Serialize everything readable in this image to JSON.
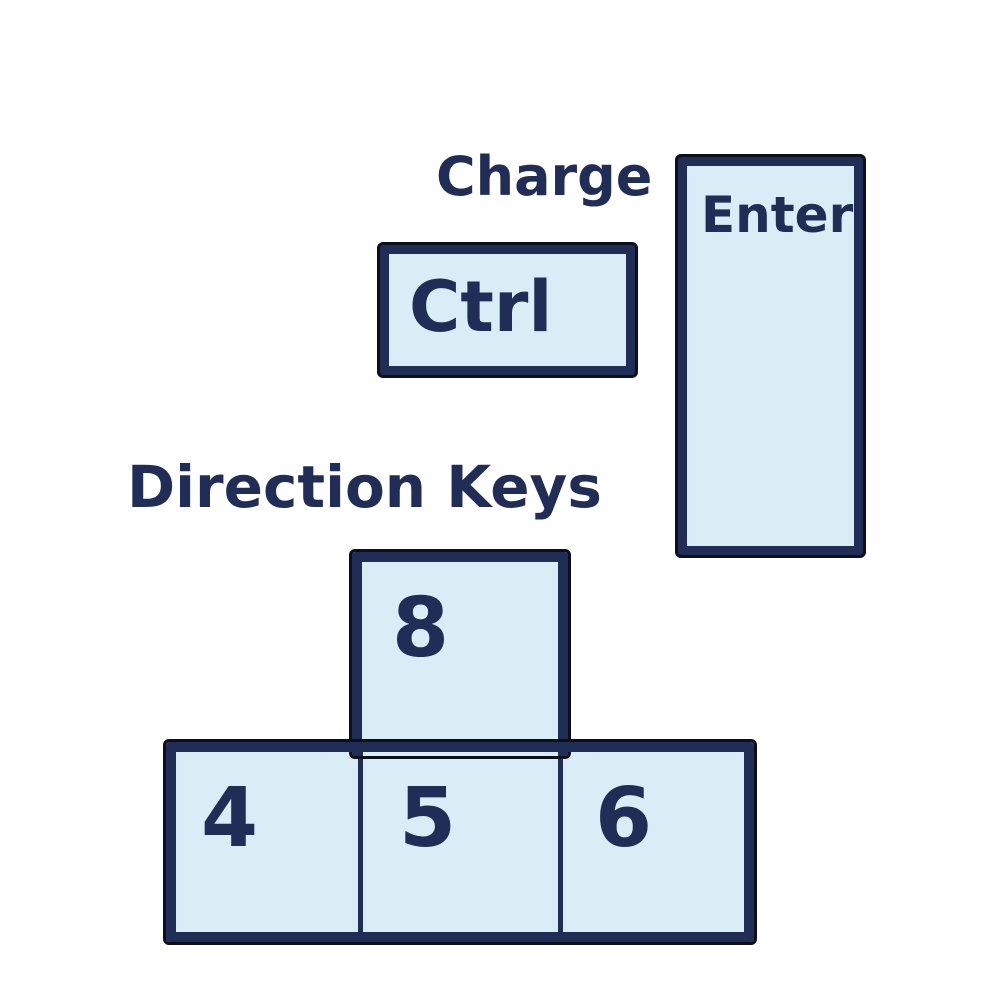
{
  "labels": {
    "charge": "Charge",
    "direction_keys": "Direction Keys"
  },
  "keys": {
    "ctrl": "Ctrl",
    "enter": "Enter",
    "up": "8",
    "left": "4",
    "center": "5",
    "right": "6"
  },
  "colors": {
    "key_fill": "#d9edf6",
    "outline": "#1f2d57",
    "text": "#1f2d57"
  }
}
